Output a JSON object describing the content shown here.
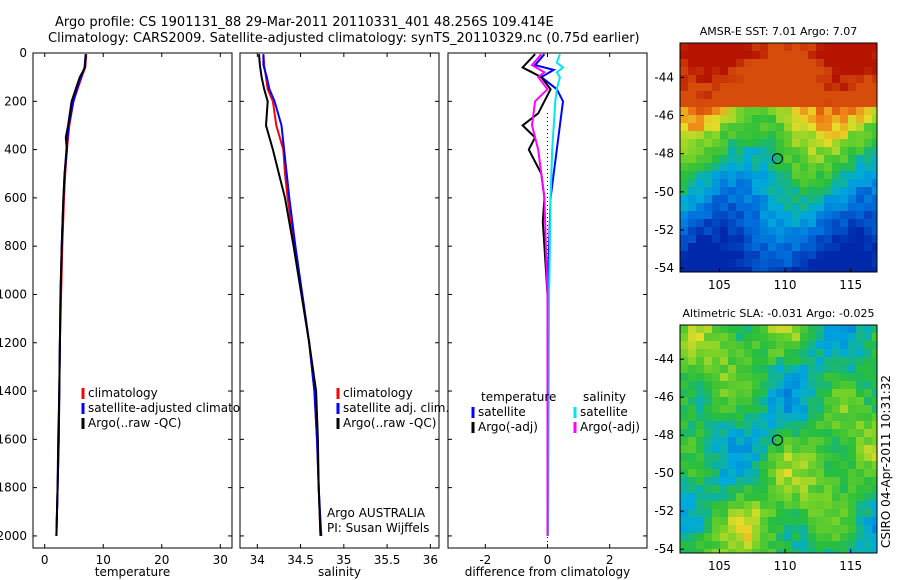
{
  "header": {
    "line1": "Argo profile: CS 1901131_88 29-Mar-2011 20110331_401 48.256S 109.414E",
    "line2": "Climatology: CARS2009. Satellite-adjusted climatology: synTS_20110329.nc (0.75d earlier)"
  },
  "watermark": "CSIRO 04-Apr-2011 10:31:32",
  "colors": {
    "climatology": "#ff0000",
    "satellite": "#0000ff",
    "argo": "#000000",
    "argo_adj_sal": "#ff00ff",
    "satellite_sal": "#00e5ee"
  },
  "chart_data": [
    {
      "type": "line",
      "panel": "temperature",
      "xlabel": "temperature",
      "ylabel": "",
      "xlim": [
        -2,
        32
      ],
      "ylim": [
        2050,
        0
      ],
      "xticks": [
        0,
        10,
        20,
        30
      ],
      "xtick_labels": [
        "0",
        "10",
        "20",
        "30"
      ],
      "yticks": [
        0,
        200,
        400,
        600,
        800,
        1000,
        1200,
        1400,
        1600,
        1800,
        2000
      ],
      "ytick_labels": [
        "0",
        "200",
        "400",
        "600",
        "800",
        "1000",
        "1200",
        "1400",
        "1600",
        "1800",
        "2000"
      ],
      "legend": [
        "climatology",
        "satellite-adjusted climatology",
        "Argo(..raw -QC)"
      ],
      "series": [
        {
          "name": "climatology",
          "color": "#ff0000",
          "depth": [
            5,
            60,
            100,
            150,
            200,
            300,
            400,
            500,
            600,
            800,
            1000,
            1200,
            1400,
            1600,
            1800,
            2000
          ],
          "values": [
            7.1,
            6.9,
            6.3,
            5.6,
            4.9,
            4.2,
            3.8,
            3.5,
            3.3,
            3.0,
            2.8,
            2.6,
            2.5,
            2.4,
            2.2,
            2.0
          ]
        },
        {
          "name": "satellite-adjusted climatology",
          "color": "#0000ff",
          "depth": [
            5,
            60,
            100,
            150,
            200,
            300,
            400,
            500,
            600,
            800,
            1000,
            1200,
            1400,
            1600,
            1800,
            2000
          ],
          "values": [
            7.0,
            6.8,
            6.2,
            5.5,
            4.9,
            4.1,
            3.7,
            3.4,
            3.2,
            2.9,
            2.7,
            2.6,
            2.5,
            2.4,
            2.2,
            2.0
          ]
        },
        {
          "name": "Argo(..raw -QC)",
          "color": "#000000",
          "depth": [
            5,
            60,
            100,
            150,
            200,
            300,
            350,
            400,
            500,
            600,
            800,
            1000,
            1200,
            1400,
            1600,
            1800,
            2000
          ],
          "values": [
            7.0,
            6.9,
            6.0,
            5.3,
            4.6,
            4.0,
            3.6,
            3.8,
            3.4,
            3.2,
            2.9,
            2.7,
            2.6,
            2.5,
            2.3,
            2.2,
            2.0
          ]
        }
      ]
    },
    {
      "type": "line",
      "panel": "salinity",
      "xlabel": "salinity",
      "xlim": [
        33.8,
        36.1
      ],
      "ylim": [
        2050,
        0
      ],
      "xticks": [
        34,
        34.5,
        35,
        35.5,
        36
      ],
      "xtick_labels": [
        "34",
        "34.5",
        "35",
        "35.5",
        "36"
      ],
      "legend": [
        "climatology",
        "satellite adj. clim.",
        "Argo(..raw -QC)"
      ],
      "annotation": [
        "Argo AUSTRALIA",
        "PI: Susan Wijffels"
      ],
      "series": [
        {
          "name": "climatology",
          "color": "#ff0000",
          "depth": [
            5,
            50,
            100,
            150,
            200,
            300,
            400,
            500,
            600,
            800,
            1000,
            1200,
            1400,
            1600,
            1800,
            2000
          ],
          "values": [
            34.07,
            34.08,
            34.1,
            34.12,
            34.18,
            34.22,
            34.3,
            34.32,
            34.35,
            34.43,
            34.52,
            34.6,
            34.66,
            34.69,
            34.71,
            34.73
          ]
        },
        {
          "name": "satellite adj. clim.",
          "color": "#0000ff",
          "depth": [
            5,
            50,
            100,
            150,
            200,
            300,
            400,
            500,
            600,
            800,
            1000,
            1200,
            1400,
            1600,
            1800,
            2000
          ],
          "values": [
            34.07,
            34.07,
            34.11,
            34.14,
            34.2,
            34.28,
            34.31,
            34.34,
            34.37,
            34.44,
            34.52,
            34.6,
            34.66,
            34.69,
            34.71,
            34.74
          ]
        },
        {
          "name": "Argo(..raw -QC)",
          "color": "#000000",
          "depth": [
            5,
            50,
            100,
            150,
            200,
            300,
            400,
            500,
            600,
            800,
            1000,
            1200,
            1400,
            1600,
            1800,
            2000
          ],
          "values": [
            34.02,
            34.03,
            34.05,
            34.08,
            34.12,
            34.1,
            34.18,
            34.25,
            34.32,
            34.42,
            34.51,
            34.6,
            34.68,
            34.7,
            34.71,
            34.73
          ]
        }
      ]
    },
    {
      "type": "line",
      "panel": "difference",
      "xlabel": "difference from climatology",
      "xlim": [
        -3.2,
        3.2
      ],
      "ylim": [
        2050,
        0
      ],
      "xticks": [
        -2,
        0,
        2
      ],
      "xtick_labels": [
        "-2",
        "0",
        "2"
      ],
      "legend": [
        "temperature",
        "satellite",
        "Argo(-adj)",
        "salinity",
        "satellite",
        "Argo(-adj)"
      ],
      "series": [
        {
          "name": "temperature satellite",
          "color": "#0000ff",
          "depth": [
            5,
            50,
            70,
            100,
            150,
            200,
            300,
            400,
            600,
            800,
            1000,
            1400,
            2000
          ],
          "values": [
            -0.1,
            -0.4,
            0.2,
            -0.2,
            0.3,
            0.5,
            0.4,
            0.3,
            0.1,
            0.05,
            0.0,
            0.0,
            0.0
          ]
        },
        {
          "name": "temperature Argo(-adj)",
          "color": "#000000",
          "depth": [
            5,
            60,
            80,
            100,
            150,
            250,
            300,
            350,
            400,
            500,
            600,
            700,
            800,
            1000,
            1400,
            2000
          ],
          "values": [
            -0.4,
            -0.8,
            -0.5,
            -0.2,
            0.1,
            -0.3,
            -0.8,
            -0.4,
            -0.6,
            -0.2,
            -0.1,
            -0.15,
            -0.1,
            0.0,
            0.0,
            0.0
          ]
        },
        {
          "name": "salinity satellite",
          "color": "#00e5ee",
          "depth": [
            5,
            40,
            60,
            80,
            100,
            150,
            200,
            400,
            600,
            1000,
            2000
          ],
          "values": [
            0.4,
            0.3,
            0.5,
            0.3,
            0.4,
            0.3,
            0.25,
            0.15,
            0.1,
            0.05,
            0.02
          ]
        },
        {
          "name": "salinity Argo(-adj)",
          "color": "#ff00ff",
          "depth": [
            5,
            50,
            80,
            100,
            150,
            200,
            300,
            400,
            500,
            600,
            800,
            1000,
            2000
          ],
          "values": [
            -0.2,
            -0.5,
            -0.1,
            -0.3,
            0.0,
            -0.4,
            -0.5,
            -0.3,
            -0.2,
            -0.1,
            -0.05,
            0.0,
            0.0
          ]
        }
      ]
    },
    {
      "type": "heatmap",
      "panel": "sst-map",
      "title": "AMSR-E SST: 7.01 Argo: 7.07",
      "xlim": [
        102,
        117
      ],
      "ylim": [
        -54.2,
        -42.2
      ],
      "xticks": [
        105,
        110,
        115
      ],
      "xtick_labels": [
        "105",
        "110",
        "115"
      ],
      "yticks": [
        -44,
        -46,
        -48,
        -50,
        -52,
        -54
      ],
      "ytick_labels": [
        "-44",
        "-46",
        "-48",
        "-50",
        "-52",
        "-54"
      ],
      "marker": {
        "lon": 109.414,
        "lat": -48.256
      }
    },
    {
      "type": "heatmap",
      "panel": "sla-map",
      "title": "Altimetric SLA: -0.031 Argo: -0.025",
      "xlim": [
        102,
        117
      ],
      "ylim": [
        -54.2,
        -42.2
      ],
      "xticks": [
        105,
        110,
        115
      ],
      "xtick_labels": [
        "105",
        "110",
        "115"
      ],
      "yticks": [
        -44,
        -46,
        -48,
        -50,
        -52,
        -54
      ],
      "ytick_labels": [
        "-44",
        "-46",
        "-48",
        "-50",
        "-52",
        "-54"
      ],
      "marker": {
        "lon": 109.414,
        "lat": -48.256
      }
    }
  ]
}
